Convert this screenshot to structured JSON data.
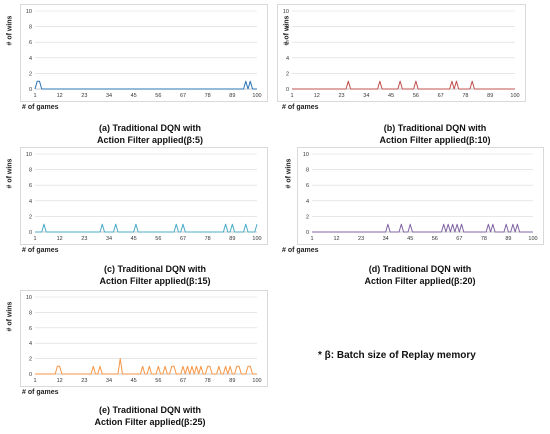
{
  "chart_data": [
    {
      "id": "a",
      "type": "line",
      "color": "#2e75b6",
      "ylabel": "# of wins",
      "xlabel": "# of games",
      "ylim": [
        0,
        10
      ],
      "yticks": [
        "0",
        "2",
        "4",
        "6",
        "8",
        "10"
      ],
      "xticks": [
        "1",
        "12",
        "23",
        "34",
        "45",
        "56",
        "67",
        "78",
        "89",
        "100"
      ],
      "x_tick_values": [
        1,
        12,
        23,
        34,
        45,
        56,
        67,
        78,
        89,
        100
      ],
      "grid": true,
      "peaks": [
        [
          2,
          1
        ],
        [
          3,
          1
        ],
        [
          95,
          1
        ],
        [
          97,
          1
        ]
      ],
      "caption_line1": "(a) Traditional DQN with",
      "caption_line2": "Action Filter applied(β:5)"
    },
    {
      "id": "b",
      "type": "line",
      "color": "#c0504d",
      "ylabel": "# of wins",
      "xlabel": "# of games",
      "ylim": [
        0,
        10
      ],
      "yticks": [
        "0",
        "2",
        "4",
        "6",
        "8",
        "10"
      ],
      "xticks": [
        "1",
        "12",
        "23",
        "34",
        "45",
        "56",
        "67",
        "78",
        "89",
        "100"
      ],
      "x_tick_values": [
        1,
        12,
        23,
        34,
        45,
        56,
        67,
        78,
        89,
        100
      ],
      "grid": true,
      "peaks": [
        [
          26,
          1
        ],
        [
          40,
          1
        ],
        [
          49,
          1
        ],
        [
          56,
          1
        ],
        [
          72,
          1
        ],
        [
          74,
          1
        ],
        [
          81,
          1
        ]
      ],
      "caption_line1": "(b) Traditional DQN with",
      "caption_line2": "Action Filter applied(β:10)"
    },
    {
      "id": "c",
      "type": "line",
      "color": "#4bacc6",
      "ylabel": "# of wins",
      "xlabel": "# of games",
      "ylim": [
        0,
        10
      ],
      "yticks": [
        "0",
        "2",
        "4",
        "6",
        "8",
        "10"
      ],
      "xticks": [
        "1",
        "12",
        "23",
        "34",
        "45",
        "56",
        "67",
        "78",
        "89",
        "100"
      ],
      "x_tick_values": [
        1,
        12,
        23,
        34,
        45,
        56,
        67,
        78,
        89,
        100
      ],
      "grid": true,
      "peaks": [
        [
          5,
          1
        ],
        [
          31,
          1
        ],
        [
          37,
          1
        ],
        [
          46,
          1
        ],
        [
          64,
          1
        ],
        [
          67,
          1
        ],
        [
          86,
          1
        ],
        [
          89,
          1
        ],
        [
          95,
          1
        ],
        [
          100,
          1
        ]
      ],
      "caption_line1": "(c) Traditional DQN with",
      "caption_line2": "Action Filter applied(β:15)"
    },
    {
      "id": "d",
      "type": "line",
      "color": "#8064a2",
      "ylabel": "# of wins",
      "xlabel": "# of games",
      "ylim": [
        0,
        10
      ],
      "yticks": [
        "0",
        "2",
        "4",
        "6",
        "8",
        "10"
      ],
      "xticks": [
        "1",
        "12",
        "23",
        "34",
        "45",
        "56",
        "67",
        "78",
        "89",
        "100"
      ],
      "x_tick_values": [
        1,
        12,
        23,
        34,
        45,
        56,
        67,
        78,
        89,
        100
      ],
      "grid": true,
      "peaks": [
        [
          35,
          1
        ],
        [
          41,
          1
        ],
        [
          45,
          1
        ],
        [
          60,
          1
        ],
        [
          62,
          1
        ],
        [
          64,
          1
        ],
        [
          66,
          1
        ],
        [
          68,
          1
        ],
        [
          80,
          1
        ],
        [
          82,
          1
        ],
        [
          88,
          1
        ],
        [
          91,
          1
        ],
        [
          93,
          1
        ]
      ],
      "caption_line1": "(d) Traditional DQN with",
      "caption_line2": "Action Filter applied(β:20)"
    },
    {
      "id": "e",
      "type": "line",
      "color": "#f79646",
      "ylabel": "# of wins",
      "xlabel": "# of games",
      "ylim": [
        0,
        10
      ],
      "yticks": [
        "0",
        "2",
        "4",
        "6",
        "8",
        "10"
      ],
      "xticks": [
        "1",
        "12",
        "23",
        "34",
        "45",
        "56",
        "67",
        "78",
        "89",
        "100"
      ],
      "x_tick_values": [
        1,
        12,
        23,
        34,
        45,
        56,
        67,
        78,
        89,
        100
      ],
      "grid": true,
      "peaks": [
        [
          11,
          1
        ],
        [
          12,
          1
        ],
        [
          27,
          1
        ],
        [
          30,
          1
        ],
        [
          39,
          2
        ],
        [
          49,
          1
        ],
        [
          52,
          1
        ],
        [
          56,
          1
        ],
        [
          59,
          1
        ],
        [
          62,
          1
        ],
        [
          63,
          1
        ],
        [
          67,
          1
        ],
        [
          69,
          1
        ],
        [
          71,
          1
        ],
        [
          73,
          1
        ],
        [
          75,
          1
        ],
        [
          78,
          1
        ],
        [
          79,
          1
        ],
        [
          83,
          1
        ],
        [
          86,
          1
        ],
        [
          88,
          1
        ],
        [
          91,
          1
        ],
        [
          92,
          1
        ],
        [
          96,
          1
        ],
        [
          97,
          1
        ]
      ],
      "caption_line1": "(e) Traditional DQN with",
      "caption_line2": "Action Filter applied(β:25)"
    }
  ],
  "note": "* β: Batch size of Replay memory"
}
